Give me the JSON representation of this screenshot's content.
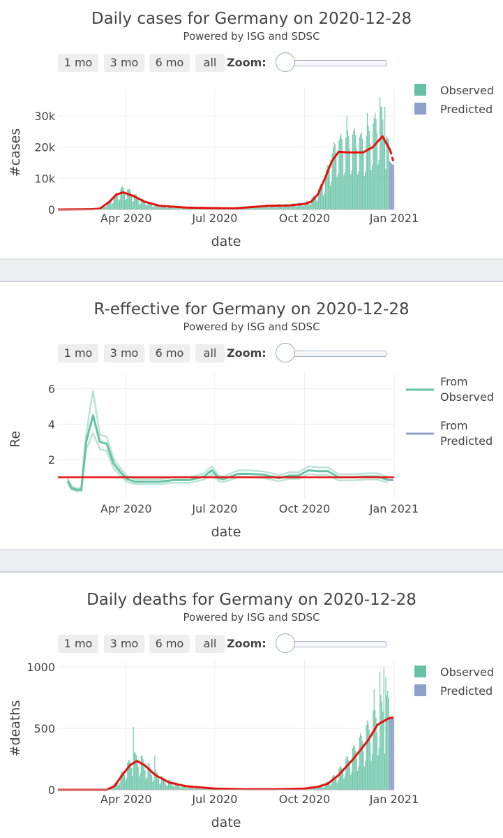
{
  "range_buttons": [
    "1 mo",
    "3 mo",
    "6 mo",
    "all"
  ],
  "zoom_label": "Zoom:",
  "colors": {
    "observed": "#66c2a5",
    "predicted": "#8da0cb",
    "fit_line": "#e3120b",
    "grid": "#eeeeee",
    "separator": "#eceef2"
  },
  "panels": [
    {
      "title": "Daily cases for Germany on 2020-12-28",
      "subtitle": "Powered by ISG and SDSC",
      "ylabel": "#cases",
      "xlabel": "date",
      "legend": [
        "Observed",
        "Predicted"
      ]
    },
    {
      "title": "R-effective for Germany on 2020-12-28",
      "subtitle": "Powered by ISG and SDSC",
      "ylabel": "Re",
      "xlabel": "date",
      "legend": [
        "From\nObserved",
        "From\nPredicted"
      ]
    },
    {
      "title": "Daily deaths for Germany on 2020-12-28",
      "subtitle": "Powered by ISG and SDSC",
      "ylabel": "#deaths",
      "xlabel": "date",
      "legend": [
        "Observed",
        "Predicted"
      ]
    }
  ],
  "chart_data": [
    {
      "type": "bar",
      "title": "Daily cases for Germany on 2020-12-28",
      "subtitle": "Powered by ISG and SDSC",
      "xlabel": "date",
      "ylabel": "#cases",
      "x_range": [
        "2020-01-22",
        "2021-01-01"
      ],
      "ylim": [
        0,
        36500
      ],
      "x_ticks": [
        {
          "date": "2020-04-01",
          "label": "Apr 2020"
        },
        {
          "date": "2020-07-01",
          "label": "Jul 2020"
        },
        {
          "date": "2020-10-01",
          "label": "Oct 2020"
        },
        {
          "date": "2021-01-01",
          "label": "Jan 2021"
        }
      ],
      "y_ticks": [
        {
          "value": 0,
          "label": "0"
        },
        {
          "value": 10000,
          "label": "10k"
        },
        {
          "value": 20000,
          "label": "20k"
        },
        {
          "value": 30000,
          "label": "30k"
        }
      ],
      "legend": [
        "Observed",
        "Predicted"
      ],
      "legend_position": "top-right",
      "grid": true,
      "observed_range": [
        "2020-01-22",
        "2020-12-26"
      ],
      "observed_keypoints": [
        [
          "2020-01-22",
          0
        ],
        [
          "2020-02-20",
          10
        ],
        [
          "2020-03-05",
          300
        ],
        [
          "2020-03-15",
          2500
        ],
        [
          "2020-03-27",
          6000
        ],
        [
          "2020-04-03",
          5500
        ],
        [
          "2020-04-15",
          3000
        ],
        [
          "2020-05-01",
          1200
        ],
        [
          "2020-06-01",
          400
        ],
        [
          "2020-07-01",
          400
        ],
        [
          "2020-08-01",
          700
        ],
        [
          "2020-08-25",
          1300
        ],
        [
          "2020-09-15",
          1500
        ],
        [
          "2020-10-01",
          1900
        ],
        [
          "2020-10-10",
          3500
        ],
        [
          "2020-10-20",
          8000
        ],
        [
          "2020-10-27",
          14000
        ],
        [
          "2020-11-02",
          19000
        ],
        [
          "2020-11-20",
          21000
        ],
        [
          "2020-12-01",
          19500
        ],
        [
          "2020-12-10",
          24000
        ],
        [
          "2020-12-18",
          27500
        ],
        [
          "2020-12-26",
          18000
        ]
      ],
      "weekly_pattern": [
        1.15,
        1.2,
        1.25,
        1.15,
        0.95,
        0.55,
        0.6
      ],
      "observed_spikes": [
        [
          "2020-11-13",
          30000
        ],
        [
          "2020-12-04",
          31000
        ],
        [
          "2020-12-17",
          36000
        ],
        [
          "2020-12-22",
          33000
        ]
      ],
      "predicted_bars": {
        "range": [
          "2020-12-27",
          "2020-12-31"
        ],
        "values": [
          15500,
          15000,
          14700,
          14500,
          14300
        ]
      },
      "fit_line": [
        [
          "2020-01-22",
          0
        ],
        [
          "2020-02-25",
          100
        ],
        [
          "2020-03-05",
          300
        ],
        [
          "2020-03-15",
          2500
        ],
        [
          "2020-03-22",
          4800
        ],
        [
          "2020-03-29",
          5500
        ],
        [
          "2020-04-08",
          4400
        ],
        [
          "2020-04-20",
          2500
        ],
        [
          "2020-05-05",
          1200
        ],
        [
          "2020-06-01",
          600
        ],
        [
          "2020-07-01",
          450
        ],
        [
          "2020-07-20",
          350
        ],
        [
          "2020-08-01",
          600
        ],
        [
          "2020-08-25",
          1200
        ],
        [
          "2020-09-15",
          1300
        ],
        [
          "2020-10-01",
          1800
        ],
        [
          "2020-10-08",
          2500
        ],
        [
          "2020-10-15",
          5000
        ],
        [
          "2020-10-22",
          10000
        ],
        [
          "2020-10-29",
          15500
        ],
        [
          "2020-11-05",
          18500
        ],
        [
          "2020-11-15",
          18300
        ],
        [
          "2020-11-30",
          18300
        ],
        [
          "2020-12-10",
          20000
        ],
        [
          "2020-12-20",
          23500
        ],
        [
          "2020-12-28",
          19000
        ]
      ],
      "fit_line_predicted": [
        [
          "2020-12-28",
          19000
        ],
        [
          "2020-12-31",
          15500
        ]
      ]
    },
    {
      "type": "line",
      "title": "R-effective for Germany on 2020-12-28",
      "subtitle": "Powered by ISG and SDSC",
      "xlabel": "date",
      "ylabel": "Re",
      "x_range": [
        "2020-01-22",
        "2021-01-01"
      ],
      "ylim": [
        -0.2,
        6.5
      ],
      "x_ticks": [
        {
          "date": "2020-04-01",
          "label": "Apr 2020"
        },
        {
          "date": "2020-07-01",
          "label": "Jul 2020"
        },
        {
          "date": "2020-10-01",
          "label": "Oct 2020"
        },
        {
          "date": "2021-01-01",
          "label": "Jan 2021"
        }
      ],
      "y_ticks": [
        {
          "value": 2,
          "label": "2"
        },
        {
          "value": 4,
          "label": "4"
        },
        {
          "value": 6,
          "label": "6"
        }
      ],
      "legend": [
        "From\nObserved",
        "From\nPredicted"
      ],
      "legend_position": "top-right",
      "grid": true,
      "reference_line": 1,
      "series": [
        {
          "name": "From\nObserved",
          "x": [
            "2020-02-01",
            "2020-02-05",
            "2020-02-10",
            "2020-02-15",
            "2020-02-20",
            "2020-02-27",
            "2020-03-05",
            "2020-03-12",
            "2020-03-19",
            "2020-03-26",
            "2020-04-02",
            "2020-04-10",
            "2020-04-20",
            "2020-05-05",
            "2020-05-20",
            "2020-06-05",
            "2020-06-20",
            "2020-06-28",
            "2020-07-05",
            "2020-07-10",
            "2020-07-25",
            "2020-08-05",
            "2020-08-20",
            "2020-09-05",
            "2020-09-15",
            "2020-09-25",
            "2020-10-05",
            "2020-10-15",
            "2020-10-25",
            "2020-11-05",
            "2020-11-20",
            "2020-12-05",
            "2020-12-15",
            "2020-12-26"
          ],
          "y": [
            0.8,
            0.4,
            0.3,
            0.3,
            3.0,
            4.5,
            3.0,
            2.9,
            1.8,
            1.3,
            0.9,
            0.75,
            0.75,
            0.75,
            0.85,
            0.85,
            1.05,
            1.4,
            0.95,
            0.9,
            1.2,
            1.2,
            1.15,
            0.95,
            1.1,
            1.1,
            1.4,
            1.35,
            1.35,
            1.0,
            1.0,
            1.05,
            1.05,
            0.85
          ]
        },
        {
          "name": "From\nPredicted",
          "x": [
            "2020-12-26",
            "2020-12-31"
          ],
          "y": [
            0.85,
            0.85
          ]
        }
      ],
      "band_upper_peak": [
        [
          "2020-02-27",
          5.9
        ],
        [
          "2020-03-05",
          3.5
        ]
      ],
      "band_lower_peak": [
        [
          "2020-02-27",
          3.5
        ]
      ]
    },
    {
      "type": "bar",
      "title": "Daily deaths for Germany on 2020-12-28",
      "subtitle": "Powered by ISG and SDSC",
      "xlabel": "date",
      "ylabel": "#deaths",
      "x_range": [
        "2020-01-22",
        "2021-01-01"
      ],
      "ylim": [
        0,
        1000
      ],
      "x_ticks": [
        {
          "date": "2020-04-01",
          "label": "Apr 2020"
        },
        {
          "date": "2020-07-01",
          "label": "Jul 2020"
        },
        {
          "date": "2020-10-01",
          "label": "Oct 2020"
        },
        {
          "date": "2021-01-01",
          "label": "Jan 2021"
        }
      ],
      "y_ticks": [
        {
          "value": 0,
          "label": "0"
        },
        {
          "value": 500,
          "label": "500"
        },
        {
          "value": 1000,
          "label": "1000"
        }
      ],
      "legend": [
        "Observed",
        "Predicted"
      ],
      "legend_position": "top-right",
      "grid": true,
      "observed_range": [
        "2020-01-22",
        "2020-12-26"
      ],
      "observed_keypoints": [
        [
          "2020-01-22",
          0
        ],
        [
          "2020-03-10",
          0
        ],
        [
          "2020-03-20",
          40
        ],
        [
          "2020-04-01",
          160
        ],
        [
          "2020-04-08",
          230
        ],
        [
          "2020-04-15",
          220
        ],
        [
          "2020-04-25",
          150
        ],
        [
          "2020-05-10",
          70
        ],
        [
          "2020-06-01",
          25
        ],
        [
          "2020-07-01",
          8
        ],
        [
          "2020-08-01",
          5
        ],
        [
          "2020-09-01",
          5
        ],
        [
          "2020-10-01",
          10
        ],
        [
          "2020-10-20",
          30
        ],
        [
          "2020-11-01",
          100
        ],
        [
          "2020-11-15",
          220
        ],
        [
          "2020-12-01",
          380
        ],
        [
          "2020-12-15",
          560
        ],
        [
          "2020-12-26",
          600
        ]
      ],
      "weekly_pattern": [
        1.3,
        1.35,
        1.25,
        1.1,
        0.85,
        0.5,
        0.6
      ],
      "observed_spikes": [
        [
          "2020-04-08",
          510
        ],
        [
          "2020-04-30",
          280
        ],
        [
          "2020-12-17",
          960
        ],
        [
          "2020-12-21",
          990
        ],
        [
          "2020-12-23",
          920
        ],
        [
          "2020-12-11",
          820
        ]
      ],
      "predicted_bars": {
        "range": [
          "2020-12-27",
          "2020-12-31"
        ],
        "values": [
          580,
          585,
          588,
          590,
          592
        ]
      },
      "fit_line": [
        [
          "2020-01-22",
          0
        ],
        [
          "2020-03-12",
          0
        ],
        [
          "2020-03-20",
          30
        ],
        [
          "2020-03-28",
          120
        ],
        [
          "2020-04-05",
          200
        ],
        [
          "2020-04-12",
          235
        ],
        [
          "2020-04-20",
          200
        ],
        [
          "2020-05-01",
          120
        ],
        [
          "2020-05-15",
          60
        ],
        [
          "2020-06-01",
          30
        ],
        [
          "2020-07-01",
          10
        ],
        [
          "2020-08-01",
          5
        ],
        [
          "2020-09-01",
          5
        ],
        [
          "2020-10-01",
          10
        ],
        [
          "2020-10-15",
          25
        ],
        [
          "2020-10-25",
          50
        ],
        [
          "2020-11-05",
          120
        ],
        [
          "2020-11-20",
          250
        ],
        [
          "2020-12-05",
          400
        ],
        [
          "2020-12-15",
          530
        ],
        [
          "2020-12-26",
          580
        ],
        [
          "2020-12-31",
          590
        ]
      ]
    }
  ]
}
